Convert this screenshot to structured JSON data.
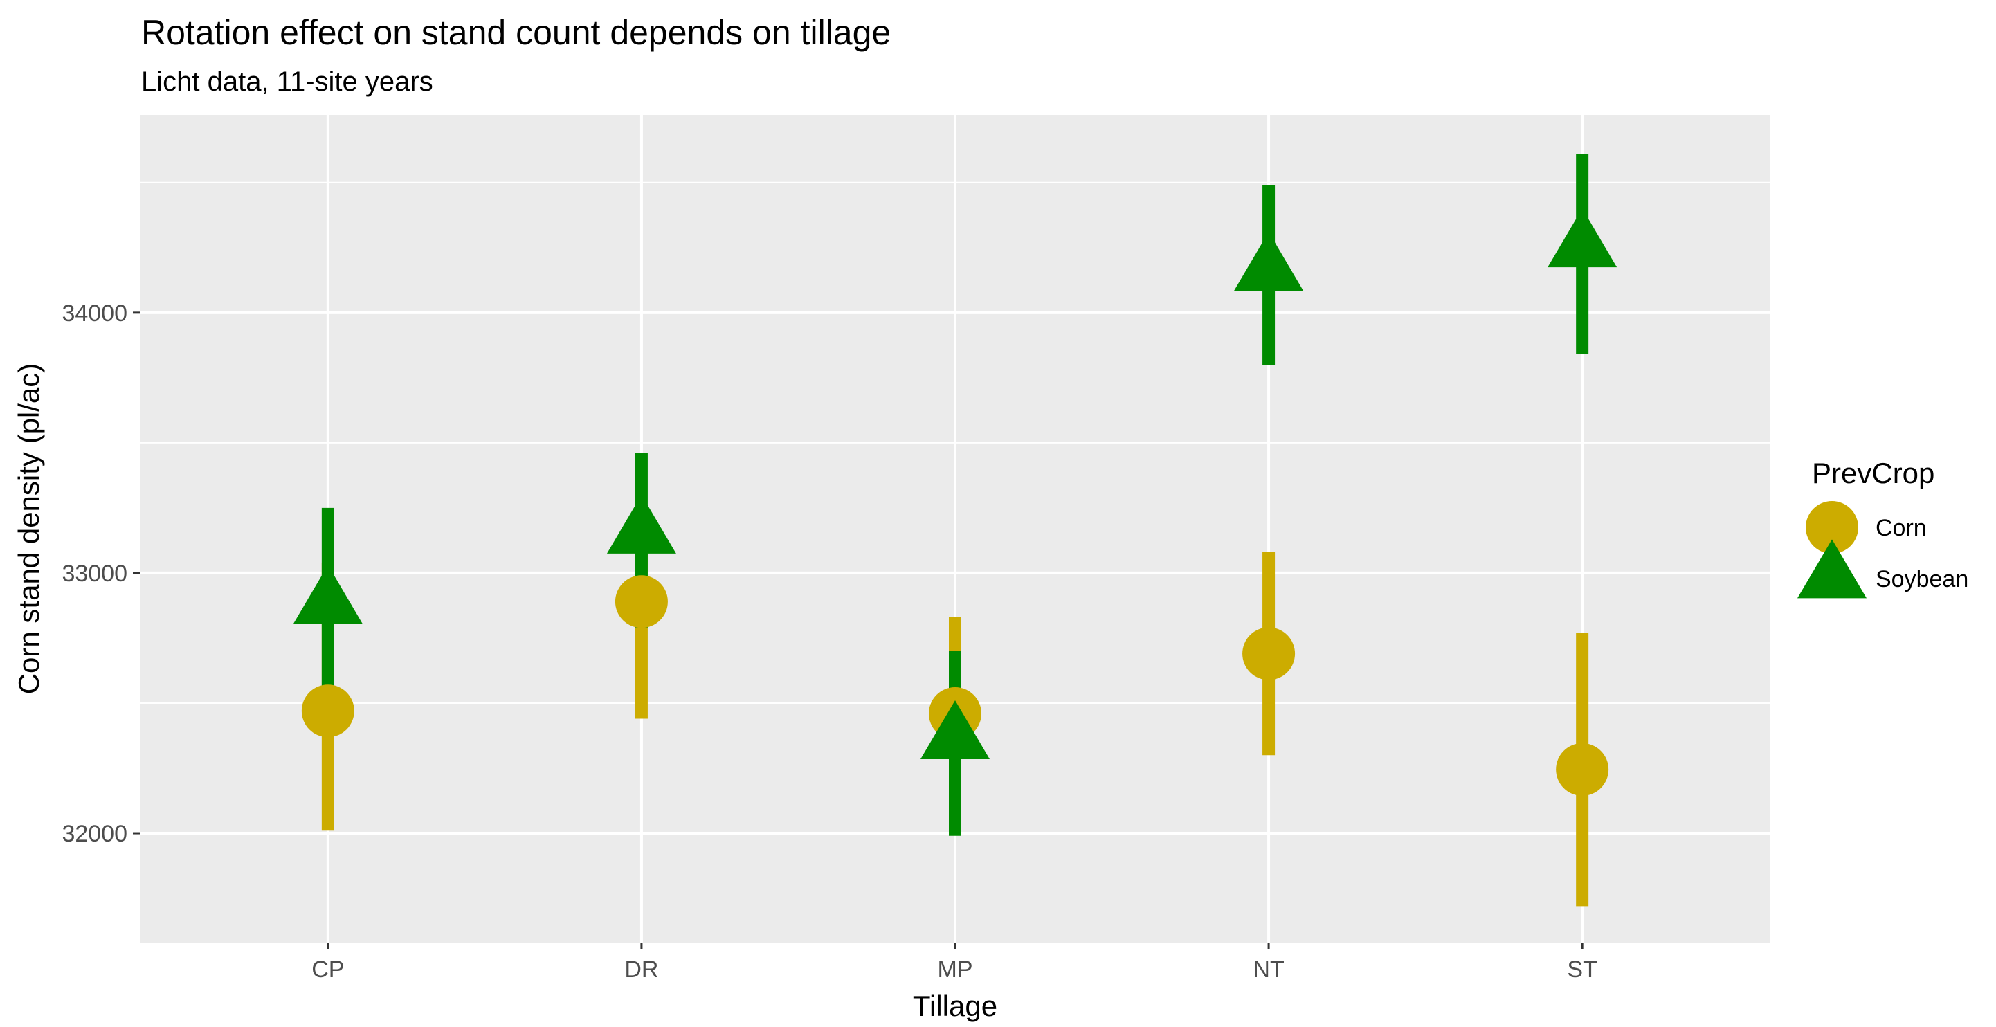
{
  "chart_data": {
    "type": "scatter",
    "title": "Rotation effect on stand count depends on tillage",
    "subtitle": "Licht data, 11-site years",
    "xlabel": "Tillage",
    "ylabel": "Corn stand density (pl/ac)",
    "categories": [
      "CP",
      "DR",
      "MP",
      "NT",
      "ST"
    ],
    "ylim": [
      31580,
      34760
    ],
    "yticks": [
      32000,
      33000,
      34000
    ],
    "grid": true,
    "legend": {
      "title": "PrevCrop",
      "placement": "right"
    },
    "series": [
      {
        "name": "Corn",
        "shape": "circle",
        "color": "#CCAC00",
        "values": [
          32470,
          32890,
          32460,
          32690,
          32245
        ],
        "lower": [
          32010,
          32440,
          32080,
          32300,
          31720
        ],
        "upper": [
          33040,
          33170,
          32830,
          33080,
          32770
        ]
      },
      {
        "name": "Soybean",
        "shape": "triangle",
        "color": "#008B00",
        "values": [
          32880,
          33150,
          32360,
          34160,
          34250
        ],
        "lower": [
          32500,
          32790,
          31990,
          33800,
          33840
        ],
        "upper": [
          33250,
          33460,
          32700,
          34490,
          34610
        ]
      }
    ]
  }
}
